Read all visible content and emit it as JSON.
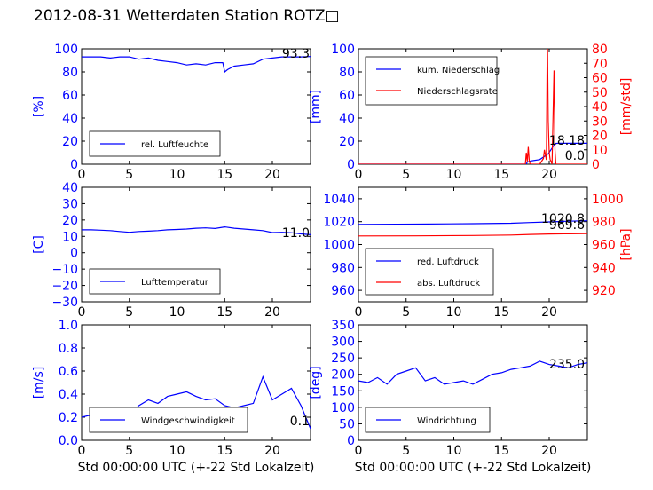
{
  "title": "2012-08-31 Wetterdaten Station ROTZ□",
  "colors": {
    "primary": "#0000ff",
    "secondary": "#ff0000",
    "light": "#7777ff",
    "axis": "#000000"
  },
  "chart_data": [
    {
      "type": "line",
      "ylabel": "[%]",
      "xlim": [
        0,
        24
      ],
      "ylim": [
        0,
        100
      ],
      "xticks": [
        "0",
        "5",
        "10",
        "15",
        "20"
      ],
      "yticks": [
        "0",
        "20",
        "40",
        "60",
        "80",
        "100"
      ],
      "legend": "lower-left",
      "current_value": "93.3",
      "series": [
        {
          "name": "rel. Luftfeuchte",
          "x": [
            0,
            1,
            2,
            3,
            4,
            5,
            6,
            7,
            8,
            9,
            10,
            11,
            12,
            13,
            14,
            14.8,
            15,
            15.3,
            16,
            17,
            18,
            19,
            20,
            21,
            22,
            23,
            24
          ],
          "y": [
            93,
            93,
            93,
            92,
            93,
            93,
            91,
            92,
            90,
            89,
            88,
            86,
            87,
            86,
            88,
            88,
            80,
            82,
            85,
            86,
            87,
            91,
            92,
            93,
            93,
            93,
            93.3
          ]
        }
      ]
    },
    {
      "type": "line",
      "ylabel": "[mm]",
      "y2label": "[mm/std]",
      "xlim": [
        0,
        24
      ],
      "ylim": [
        0,
        100
      ],
      "y2lim": [
        0,
        80
      ],
      "xticks": [
        "0",
        "5",
        "10",
        "15",
        "20"
      ],
      "yticks": [
        "0",
        "20",
        "40",
        "60",
        "80",
        "100"
      ],
      "y2ticks": [
        "0",
        "10",
        "20",
        "30",
        "40",
        "50",
        "60",
        "70",
        "80"
      ],
      "legend": "top-left",
      "current_value": "18.18",
      "current_value2": "0.0",
      "series": [
        {
          "name": "kum. Niederschlag",
          "axis": "left",
          "x": [
            0,
            17.6,
            17.7,
            18.2,
            19,
            19.9,
            20.3,
            20.6,
            21,
            22,
            24
          ],
          "y": [
            0,
            0,
            2,
            3,
            4,
            9,
            14,
            18,
            18.18,
            18.18,
            18.18
          ]
        },
        {
          "name": "Niederschlagsrate",
          "axis": "right",
          "x": [
            0,
            17.5,
            17.6,
            17.7,
            17.8,
            17.9,
            18.0,
            19.0,
            19.4,
            19.5,
            19.7,
            19.8,
            19.9,
            20.0,
            20.1,
            20.2,
            20.3,
            20.5,
            20.6,
            20.7,
            20.9,
            24
          ],
          "y": [
            0,
            0,
            8,
            2,
            12,
            3,
            0,
            0,
            4,
            10,
            3,
            93,
            30,
            8,
            3,
            2,
            0,
            65,
            10,
            0,
            0,
            0
          ]
        }
      ]
    },
    {
      "type": "line",
      "ylabel": "[C]",
      "xlim": [
        0,
        24
      ],
      "ylim": [
        -30,
        40
      ],
      "xticks": [
        "0",
        "5",
        "10",
        "15",
        "20"
      ],
      "yticks": [
        "−30",
        "−20",
        "−10",
        "0",
        "10",
        "20",
        "30",
        "40"
      ],
      "legend": "lower-left",
      "current_value": "11.0",
      "series": [
        {
          "name": "Lufttemperatur",
          "x": [
            0,
            1,
            2,
            3,
            4,
            5,
            6,
            7,
            8,
            9,
            10,
            11,
            12,
            13,
            14,
            15,
            16,
            17,
            18,
            19,
            20,
            21,
            22,
            23,
            24
          ],
          "y": [
            14,
            14,
            13.8,
            13.5,
            13,
            12.5,
            13,
            13.2,
            13.5,
            14,
            14.2,
            14.5,
            15,
            15.2,
            14.8,
            15.8,
            15,
            14.5,
            14,
            13.5,
            12.3,
            12.5,
            12.2,
            11.5,
            11
          ]
        }
      ]
    },
    {
      "type": "line",
      "ylabel": "",
      "y2label": "[hPa]",
      "xlim": [
        0,
        24
      ],
      "ylim": [
        950,
        1050
      ],
      "y2lim": [
        910,
        1010
      ],
      "xticks": [
        "0",
        "5",
        "10",
        "15",
        "20"
      ],
      "yticks": [
        "960",
        "980",
        "1000",
        "1020",
        "1040"
      ],
      "y2ticks": [
        "920",
        "940",
        "960",
        "980",
        "1000"
      ],
      "legend": "lower-left",
      "current_value": "1020.8",
      "current_value2": "969.6",
      "series": [
        {
          "name": "red. Luftdruck",
          "axis": "left",
          "x": [
            0,
            6,
            12,
            16,
            18,
            20,
            22,
            24
          ],
          "y": [
            1017.5,
            1017.8,
            1018.2,
            1018.6,
            1019.2,
            1019.8,
            1020.4,
            1020.8
          ]
        },
        {
          "name": "abs. Luftdruck",
          "axis": "right",
          "x": [
            0,
            6,
            12,
            16,
            18,
            20,
            22,
            24
          ],
          "y": [
            967.5,
            967.6,
            967.9,
            968.3,
            968.8,
            969.2,
            969.4,
            969.6
          ]
        }
      ]
    },
    {
      "type": "line",
      "ylabel": "[m/s]",
      "xlabel": "Std 00:00:00 UTC (+-22 Std Lokalzeit)",
      "xlim": [
        0,
        24
      ],
      "ylim": [
        0,
        1.0
      ],
      "xticks": [
        "0",
        "5",
        "10",
        "15",
        "20"
      ],
      "yticks": [
        "0.0",
        "0.2",
        "0.4",
        "0.6",
        "0.8",
        "1.0"
      ],
      "legend": "lower-left",
      "current_value": "0.1",
      "series": [
        {
          "name": "Windgeschwindigkeit",
          "x": [
            0,
            1,
            2,
            3,
            4,
            5,
            6,
            7,
            8,
            9,
            10,
            11,
            12,
            13,
            14,
            15,
            16,
            17,
            18,
            19,
            20,
            21,
            22,
            23,
            24
          ],
          "y": [
            0.2,
            0.22,
            0.18,
            0.2,
            0.25,
            0.22,
            0.3,
            0.35,
            0.32,
            0.38,
            0.4,
            0.42,
            0.38,
            0.35,
            0.36,
            0.3,
            0.28,
            0.3,
            0.32,
            0.55,
            0.35,
            0.4,
            0.45,
            0.3,
            0.1
          ]
        }
      ]
    },
    {
      "type": "line",
      "ylabel": "[deg]",
      "xlabel": "Std 00:00:00 UTC (+-22 Std Lokalzeit)",
      "xlim": [
        0,
        24
      ],
      "ylim": [
        0,
        350
      ],
      "xticks": [
        "0",
        "5",
        "10",
        "15",
        "20"
      ],
      "yticks": [
        "0",
        "50",
        "100",
        "150",
        "200",
        "250",
        "300",
        "350"
      ],
      "legend": "lower-left",
      "current_value": "235.0",
      "series": [
        {
          "name": "Windrichtung",
          "x": [
            0,
            1,
            2,
            3,
            4,
            5,
            6,
            7,
            8,
            9,
            10,
            11,
            12,
            13,
            14,
            15,
            16,
            17,
            18,
            19,
            20,
            21,
            22,
            23,
            24
          ],
          "y": [
            180,
            175,
            190,
            170,
            200,
            210,
            220,
            180,
            190,
            170,
            175,
            180,
            170,
            185,
            200,
            205,
            215,
            220,
            225,
            240,
            230,
            225,
            220,
            230,
            235
          ]
        }
      ]
    }
  ]
}
